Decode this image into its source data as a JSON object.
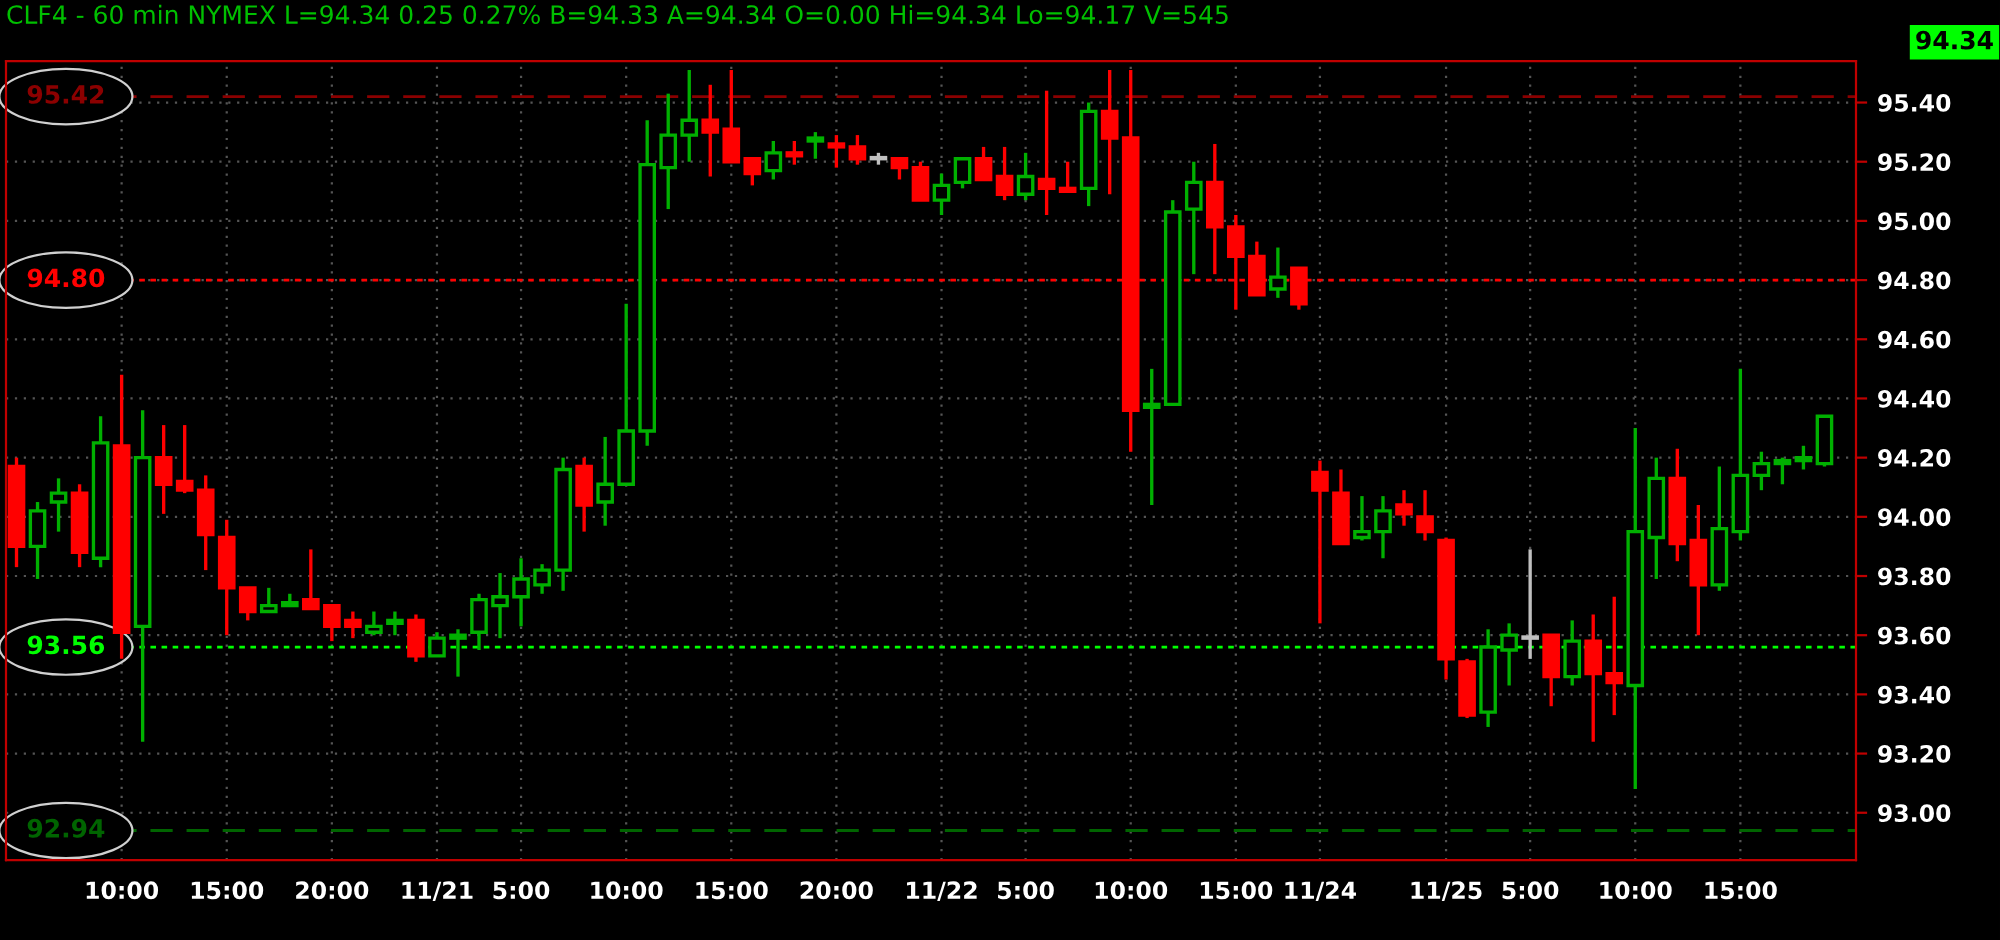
{
  "chart_data": {
    "type": "candlestick",
    "title": "CLF4 - 60 min NYMEX L=94.34 0.25 0.27% B=94.33 A=94.34 O=0.00 Hi=94.34 Lo=94.17 V=545",
    "categories": [
      null,
      null,
      null,
      null,
      null,
      "10:00",
      null,
      null,
      null,
      null,
      "15:00",
      null,
      null,
      null,
      null,
      "20:00",
      null,
      null,
      null,
      null,
      "11/21",
      null,
      null,
      null,
      "5:00",
      null,
      null,
      null,
      null,
      "10:00",
      null,
      null,
      null,
      null,
      "15:00",
      null,
      null,
      null,
      null,
      "20:00",
      null,
      null,
      null,
      null,
      "11/22",
      null,
      null,
      null,
      "5:00",
      null,
      null,
      null,
      null,
      "10:00",
      null,
      null,
      null,
      null,
      "15:00",
      null,
      null,
      null,
      "11/24",
      null,
      null,
      null,
      null,
      null,
      "11/25",
      null,
      null,
      null,
      "5:00",
      null,
      null,
      null,
      null,
      "10:00",
      null,
      null,
      null,
      null,
      "15:00",
      null,
      null,
      null,
      null
    ],
    "ohlc": [
      [
        94.17,
        94.2,
        93.83,
        93.9
      ],
      [
        93.9,
        94.05,
        93.79,
        94.02
      ],
      [
        94.05,
        94.13,
        93.95,
        94.08
      ],
      [
        94.08,
        94.11,
        93.83,
        93.88
      ],
      [
        93.86,
        94.34,
        93.83,
        94.25
      ],
      [
        94.24,
        94.48,
        93.52,
        93.61
      ],
      [
        93.63,
        94.36,
        93.24,
        94.2
      ],
      [
        94.2,
        94.31,
        94.01,
        94.11
      ],
      [
        94.12,
        94.31,
        94.08,
        94.09
      ],
      [
        94.09,
        94.14,
        93.82,
        93.94
      ],
      [
        93.93,
        93.99,
        93.6,
        93.76
      ],
      [
        93.76,
        93.76,
        93.65,
        93.68
      ],
      [
        93.68,
        93.76,
        93.68,
        93.7
      ],
      [
        93.7,
        93.74,
        93.7,
        93.71
      ],
      [
        93.72,
        93.89,
        93.69,
        93.69
      ],
      [
        93.7,
        93.7,
        93.58,
        93.63
      ],
      [
        93.65,
        93.68,
        93.59,
        93.63
      ],
      [
        93.61,
        93.68,
        93.6,
        93.63
      ],
      [
        93.64,
        93.68,
        93.6,
        93.65
      ],
      [
        93.65,
        93.67,
        93.51,
        93.53
      ],
      [
        93.53,
        93.61,
        93.53,
        93.59
      ],
      [
        93.59,
        93.62,
        93.46,
        93.6
      ],
      [
        93.61,
        93.74,
        93.55,
        93.72
      ],
      [
        93.7,
        93.81,
        93.59,
        93.73
      ],
      [
        93.73,
        93.86,
        93.63,
        93.79
      ],
      [
        93.77,
        93.84,
        93.74,
        93.82
      ],
      [
        93.82,
        94.2,
        93.75,
        94.16
      ],
      [
        94.17,
        94.2,
        93.95,
        94.04
      ],
      [
        94.05,
        94.27,
        93.97,
        94.11
      ],
      [
        94.11,
        94.72,
        94.11,
        94.29
      ],
      [
        94.29,
        95.34,
        94.24,
        95.19
      ],
      [
        95.18,
        95.43,
        95.04,
        95.29
      ],
      [
        95.29,
        95.51,
        95.2,
        95.34
      ],
      [
        95.34,
        95.46,
        95.15,
        95.3
      ],
      [
        95.31,
        95.51,
        95.2,
        95.2
      ],
      [
        95.21,
        95.21,
        95.12,
        95.16
      ],
      [
        95.17,
        95.27,
        95.14,
        95.23
      ],
      [
        95.23,
        95.27,
        95.19,
        95.22
      ],
      [
        95.27,
        95.3,
        95.21,
        95.28
      ],
      [
        95.26,
        95.29,
        95.18,
        95.25
      ],
      [
        95.25,
        95.29,
        95.19,
        95.21
      ],
      [
        95.21,
        95.23,
        95.19,
        95.21
      ],
      [
        95.21,
        95.21,
        95.14,
        95.18
      ],
      [
        95.18,
        95.2,
        95.07,
        95.07
      ],
      [
        95.07,
        95.16,
        95.02,
        95.12
      ],
      [
        95.13,
        95.21,
        95.11,
        95.21
      ],
      [
        95.21,
        95.25,
        95.14,
        95.14
      ],
      [
        95.15,
        95.25,
        95.07,
        95.09
      ],
      [
        95.09,
        95.23,
        95.07,
        95.15
      ],
      [
        95.14,
        95.44,
        95.02,
        95.11
      ],
      [
        95.11,
        95.2,
        95.1,
        95.1
      ],
      [
        95.11,
        95.4,
        95.05,
        95.37
      ],
      [
        95.37,
        95.51,
        95.09,
        95.28
      ],
      [
        95.28,
        95.51,
        94.22,
        94.36
      ],
      [
        94.37,
        94.5,
        94.04,
        94.38
      ],
      [
        94.38,
        95.07,
        94.38,
        95.03
      ],
      [
        95.04,
        95.2,
        94.82,
        95.13
      ],
      [
        95.13,
        95.26,
        94.82,
        94.98
      ],
      [
        94.98,
        95.02,
        94.7,
        94.88
      ],
      [
        94.88,
        94.93,
        94.75,
        94.75
      ],
      [
        94.77,
        94.91,
        94.74,
        94.81
      ],
      [
        94.84,
        94.84,
        94.7,
        94.72
      ],
      [
        94.15,
        94.19,
        93.64,
        94.09
      ],
      [
        94.08,
        94.16,
        93.91,
        93.91
      ],
      [
        93.93,
        94.07,
        93.92,
        93.95
      ],
      [
        93.95,
        94.07,
        93.86,
        94.02
      ],
      [
        94.04,
        94.09,
        93.97,
        94.01
      ],
      [
        94.0,
        94.09,
        93.92,
        93.95
      ],
      [
        93.92,
        93.93,
        93.45,
        93.52
      ],
      [
        93.51,
        93.52,
        93.32,
        93.33
      ],
      [
        93.34,
        93.62,
        93.29,
        93.56
      ],
      [
        93.55,
        93.64,
        93.43,
        93.6
      ],
      [
        93.59,
        93.89,
        93.52,
        93.59
      ],
      [
        93.6,
        93.6,
        93.36,
        93.46
      ],
      [
        93.46,
        93.65,
        93.43,
        93.58
      ],
      [
        93.58,
        93.67,
        93.24,
        93.47
      ],
      [
        93.47,
        93.73,
        93.33,
        93.44
      ],
      [
        93.43,
        94.3,
        93.08,
        93.95
      ],
      [
        93.93,
        94.2,
        93.79,
        94.13
      ],
      [
        94.13,
        94.23,
        93.85,
        93.91
      ],
      [
        93.92,
        94.04,
        93.6,
        93.77
      ],
      [
        93.77,
        94.17,
        93.75,
        93.96
      ],
      [
        93.95,
        94.5,
        93.92,
        94.14
      ],
      [
        94.14,
        94.22,
        94.09,
        94.18
      ],
      [
        94.18,
        94.2,
        94.11,
        94.19
      ],
      [
        94.19,
        94.24,
        94.16,
        94.2
      ],
      [
        94.18,
        94.34,
        94.17,
        94.34
      ]
    ],
    "colors": [
      "#ff0000",
      "#00b000",
      "#00b000",
      "#ff0000",
      "#00b000",
      "#ff0000",
      "#00b000",
      "#ff0000",
      "#ff0000",
      "#ff0000",
      "#ff0000",
      "#ff0000",
      "#00b000",
      "#00b000",
      "#ff0000",
      "#ff0000",
      "#ff0000",
      "#00b000",
      "#00b000",
      "#ff0000",
      "#00b000",
      "#00b000",
      "#00b000",
      "#00b000",
      "#00b000",
      "#00b000",
      "#00b000",
      "#ff0000",
      "#00b000",
      "#00b000",
      "#00b000",
      "#00b000",
      "#00b000",
      "#ff0000",
      "#ff0000",
      "#ff0000",
      "#00b000",
      "#ff0000",
      "#00b000",
      "#ff0000",
      "#ff0000",
      "#c0c0c0",
      "#ff0000",
      "#ff0000",
      "#00b000",
      "#00b000",
      "#ff0000",
      "#ff0000",
      "#00b000",
      "#ff0000",
      "#ff0000",
      "#00b000",
      "#ff0000",
      "#ff0000",
      "#00b000",
      "#00b000",
      "#00b000",
      "#ff0000",
      "#ff0000",
      "#ff0000",
      "#00b000",
      "#ff0000",
      "#ff0000",
      "#ff0000",
      "#00b000",
      "#00b000",
      "#ff0000",
      "#ff0000",
      "#ff0000",
      "#ff0000",
      "#00b000",
      "#00b000",
      "#c0c0c0",
      "#ff0000",
      "#00b000",
      "#ff0000",
      "#ff0000",
      "#00b000",
      "#00b000",
      "#ff0000",
      "#ff0000",
      "#00b000",
      "#00b000",
      "#00b000",
      "#00b000",
      "#00b000",
      "#00b000"
    ],
    "ylim": [
      92.84,
      95.54
    ],
    "yticks": [
      {
        "value": 93.0,
        "label": "93.00"
      },
      {
        "value": 93.2,
        "label": "93.20"
      },
      {
        "value": 93.4,
        "label": "93.40"
      },
      {
        "value": 93.6,
        "label": "93.60"
      },
      {
        "value": 93.8,
        "label": "93.80"
      },
      {
        "value": 94.0,
        "label": "94.00"
      },
      {
        "value": 94.2,
        "label": "94.20"
      },
      {
        "value": 94.4,
        "label": "94.40"
      },
      {
        "value": 94.6,
        "label": "94.60"
      },
      {
        "value": 94.8,
        "label": "94.80"
      },
      {
        "value": 95.0,
        "label": "95.00"
      },
      {
        "value": 95.2,
        "label": "95.20"
      },
      {
        "value": 95.4,
        "label": "95.40"
      }
    ],
    "ref_lines": [
      {
        "axis": "y",
        "value": 95.42,
        "label": "95.42",
        "color": "#8b0000",
        "line_style": "dashed"
      },
      {
        "axis": "y",
        "value": 94.8,
        "label": "94.80",
        "color": "#ff0000",
        "line_style": "dotted"
      },
      {
        "axis": "y",
        "value": 93.56,
        "label": "93.56",
        "color": "#00ff00",
        "line_style": "dotted"
      },
      {
        "axis": "y",
        "value": 92.94,
        "label": "92.94",
        "color": "#006400",
        "line_style": "dashed"
      }
    ],
    "annotations": [
      "94.34"
    ],
    "grid": true
  }
}
